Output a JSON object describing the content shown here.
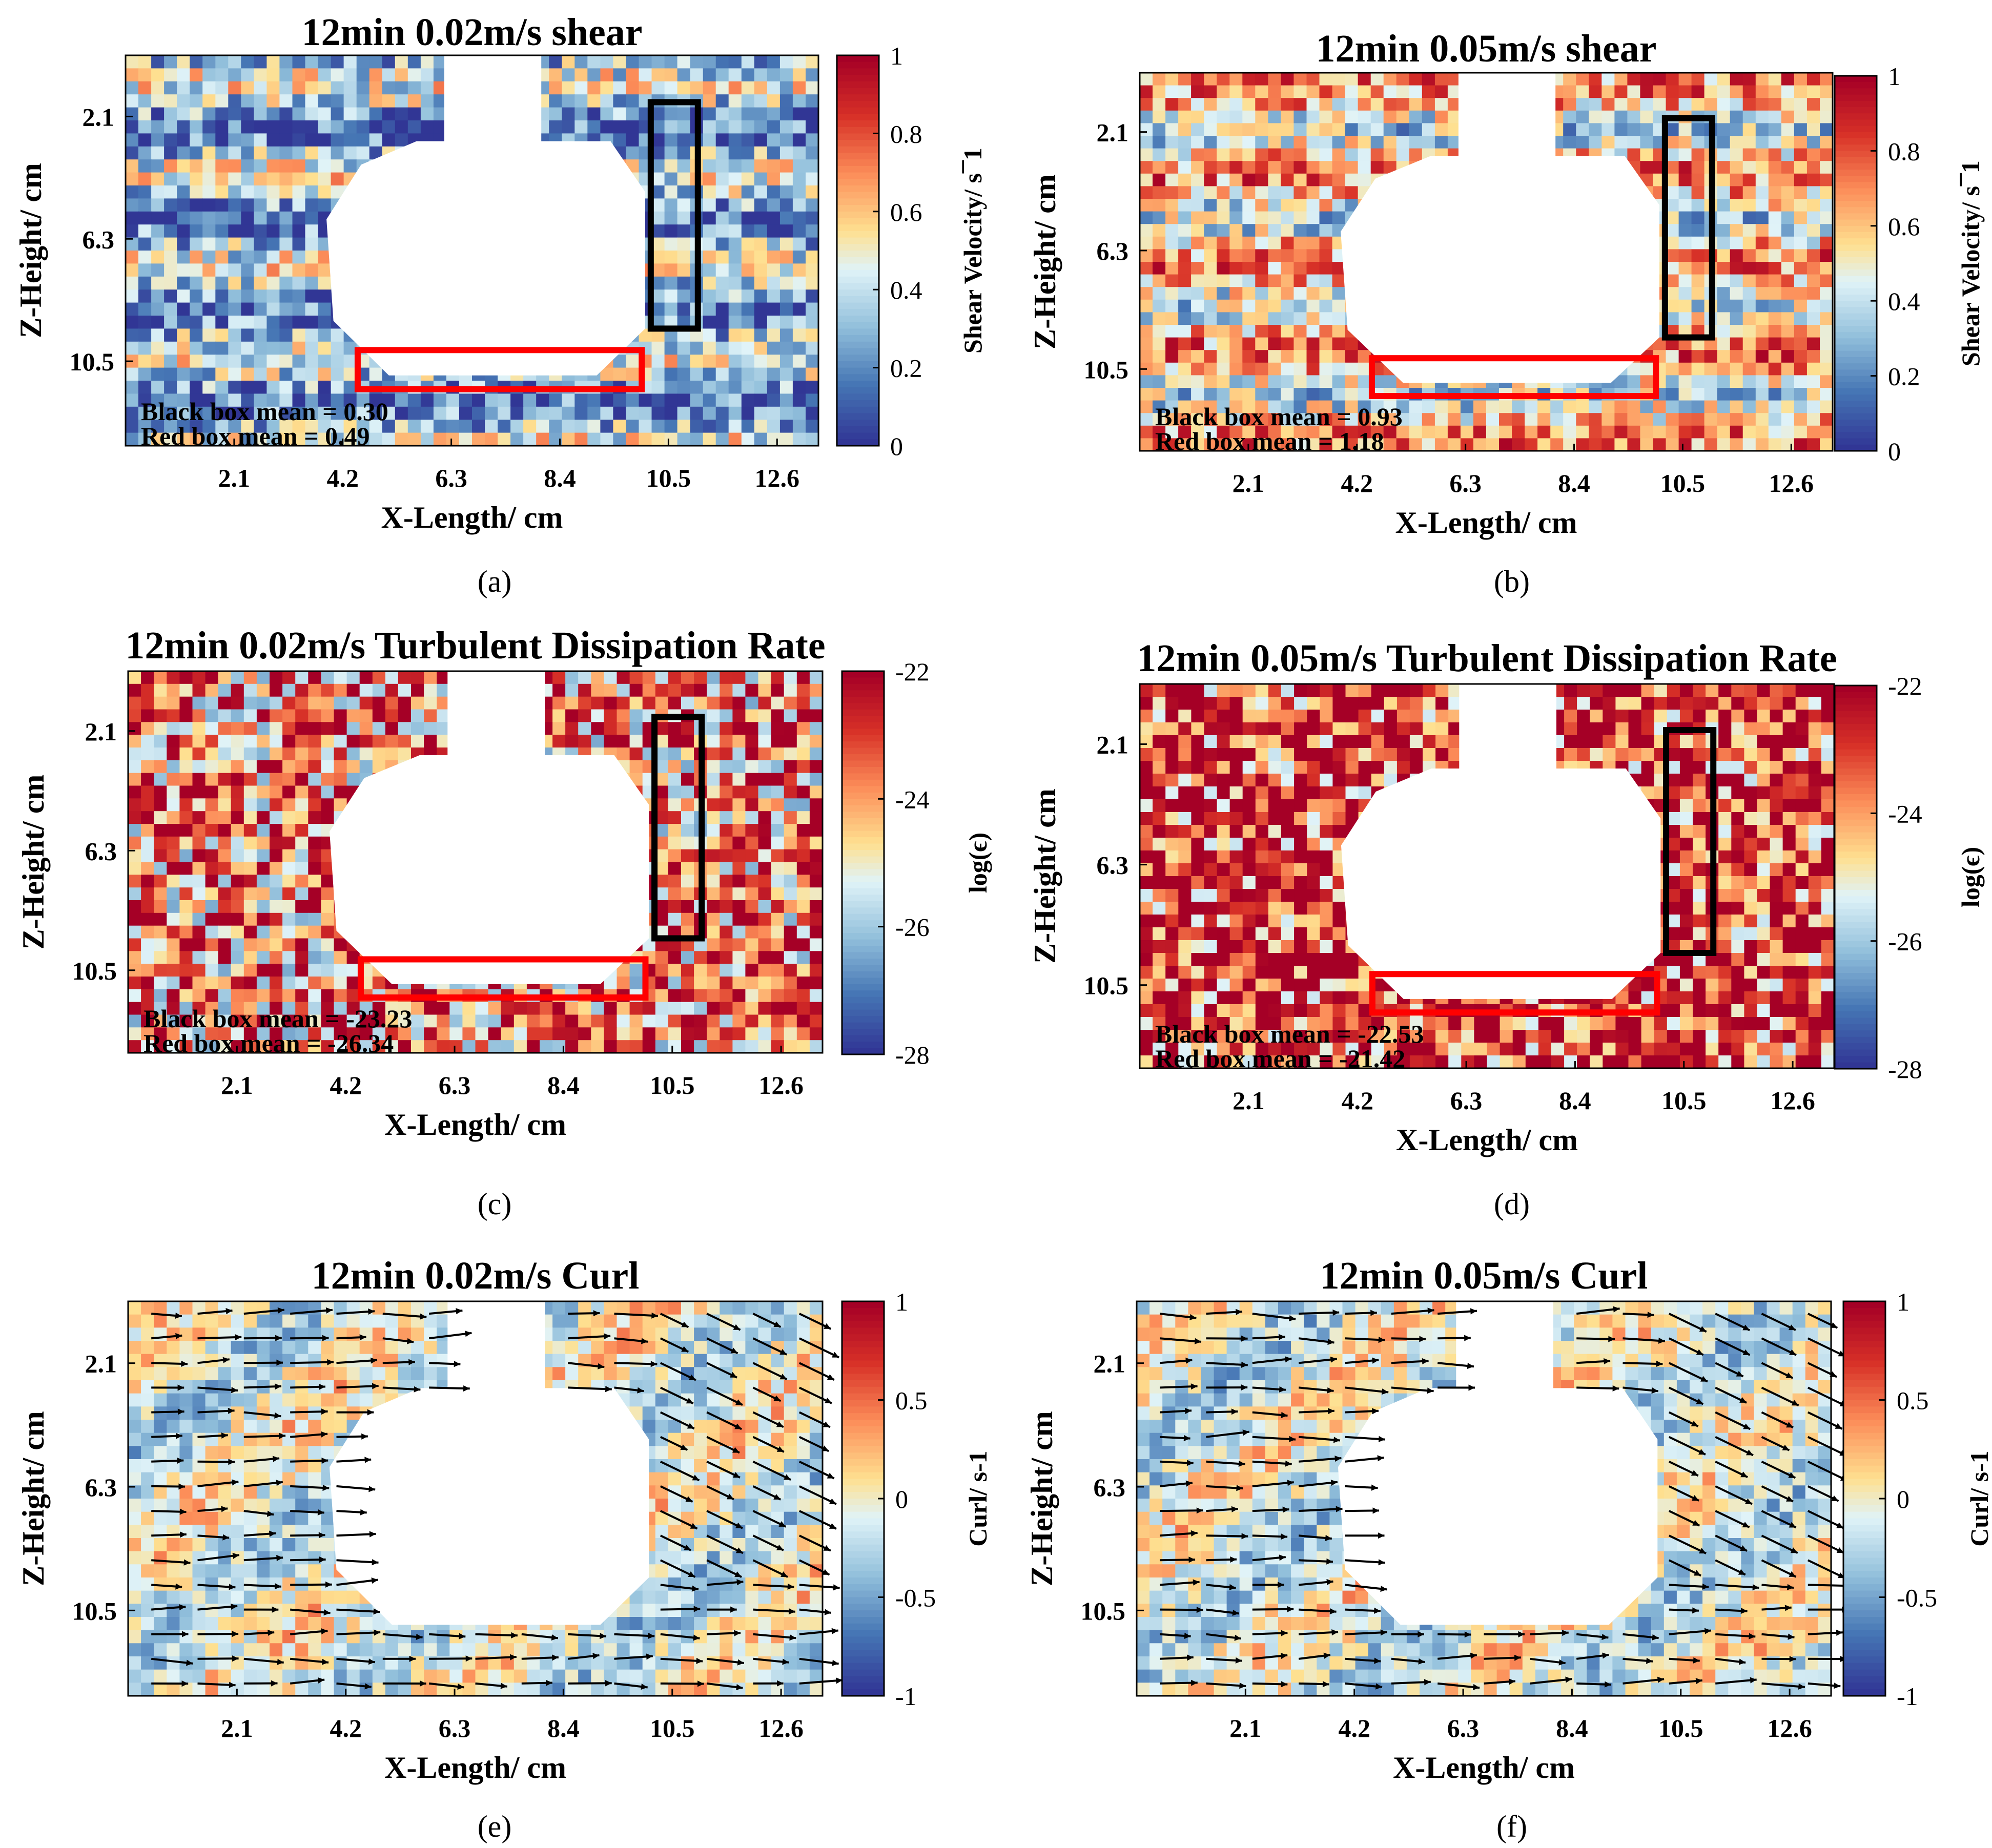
{
  "figure": {
    "panel_labels": [
      "(a)",
      "(b)",
      "(c)",
      "(d)",
      "(e)",
      "(f)"
    ]
  },
  "chart_data": [
    {
      "id": "a",
      "type": "heatmap",
      "field": "shear",
      "title": "12min 0.02m/s shear",
      "xlabel": "X-Length/ cm",
      "ylabel": "Z-Height/ cm",
      "xticks": [
        "2.1",
        "4.2",
        "6.3",
        "8.4",
        "10.5",
        "12.6"
      ],
      "yticks": [
        "2.1",
        "6.3",
        "10.5"
      ],
      "colorbar": {
        "label": "Shear Velocity/ s¯1",
        "ticks": [
          "1",
          "0.8",
          "0.6",
          "0.4",
          "0.2",
          "0"
        ],
        "range": [
          0,
          1
        ],
        "colormap": "blue-white-red"
      },
      "annotations": [
        "Black box mean = 0.30",
        "Red box mean = 0.49"
      ],
      "black_box_mean": 0.3,
      "red_box_mean": 0.49,
      "intensity": 0.3
    },
    {
      "id": "b",
      "type": "heatmap",
      "field": "shear",
      "title": "12min 0.05m/s shear",
      "xlabel": "X-Length/ cm",
      "ylabel": "Z-Height/ cm",
      "xticks": [
        "2.1",
        "4.2",
        "6.3",
        "8.4",
        "10.5",
        "12.6"
      ],
      "yticks": [
        "2.1",
        "6.3",
        "10.5"
      ],
      "colorbar": {
        "label": "Shear Velocity/ s¯1",
        "ticks": [
          "1",
          "0.8",
          "0.6",
          "0.4",
          "0.2",
          "0"
        ],
        "range": [
          0,
          1
        ],
        "colormap": "blue-white-red"
      },
      "annotations": [
        "Black box mean = 0.93",
        "Red box mean = 1.18"
      ],
      "black_box_mean": 0.93,
      "red_box_mean": 1.18,
      "intensity": 0.55
    },
    {
      "id": "c",
      "type": "heatmap",
      "field": "dissipation",
      "title": "12min 0.02m/s Turbulent Dissipation Rate",
      "xlabel": "X-Length/ cm",
      "ylabel": "Z-Height/ cm",
      "xticks": [
        "2.1",
        "4.2",
        "6.3",
        "8.4",
        "10.5",
        "12.6"
      ],
      "yticks": [
        "2.1",
        "6.3",
        "10.5"
      ],
      "colorbar": {
        "label": "log(ϵ)",
        "ticks": [
          "-22",
          "-24",
          "-26",
          "-28"
        ],
        "range": [
          -28,
          -22
        ],
        "colormap": "blue-white-red"
      },
      "annotations": [
        "Black box mean = -23.23",
        "Red box mean = -26.34"
      ],
      "black_box_mean": -23.23,
      "red_box_mean": -26.34,
      "intensity": 0.7
    },
    {
      "id": "d",
      "type": "heatmap",
      "field": "dissipation",
      "title": "12min 0.05m/s Turbulent Dissipation Rate",
      "xlabel": "X-Length/ cm",
      "ylabel": "Z-Height/ cm",
      "xticks": [
        "2.1",
        "4.2",
        "6.3",
        "8.4",
        "10.5",
        "12.6"
      ],
      "yticks": [
        "2.1",
        "6.3",
        "10.5"
      ],
      "colorbar": {
        "label": "log(ϵ)",
        "ticks": [
          "-22",
          "-24",
          "-26",
          "-28"
        ],
        "range": [
          -28,
          -22
        ],
        "colormap": "blue-white-red"
      },
      "annotations": [
        "Black box mean = -22.53",
        "Red box mean = -21.42"
      ],
      "black_box_mean": -22.53,
      "red_box_mean": -21.42,
      "intensity": 0.85
    },
    {
      "id": "e",
      "type": "heatmap",
      "field": "curl_with_velocity_vectors",
      "title": "12min 0.02m/s Curl",
      "xlabel": "X-Length/ cm",
      "ylabel": "Z-Height/ cm",
      "xticks": [
        "2.1",
        "4.2",
        "6.3",
        "8.4",
        "10.5",
        "12.6"
      ],
      "yticks": [
        "2.1",
        "6.3",
        "10.5"
      ],
      "colorbar": {
        "label": "Curl/ s-1",
        "ticks": [
          "1",
          "0.5",
          "0",
          "-0.5",
          "-1"
        ],
        "range": [
          -1,
          1
        ],
        "colormap": "blue-white-red"
      },
      "annotations": [],
      "intensity": 0.5
    },
    {
      "id": "f",
      "type": "heatmap",
      "field": "curl_with_velocity_vectors",
      "title": "12min 0.05m/s Curl",
      "xlabel": "X-Length/ cm",
      "ylabel": "Z-Height/ cm",
      "xticks": [
        "2.1",
        "4.2",
        "6.3",
        "8.4",
        "10.5",
        "12.6"
      ],
      "yticks": [
        "2.1",
        "6.3",
        "10.5"
      ],
      "colorbar": {
        "label": "Curl/ s-1",
        "ticks": [
          "1",
          "0.5",
          "0",
          "-0.5",
          "-1"
        ],
        "range": [
          -1,
          1
        ],
        "colormap": "blue-white-red"
      },
      "annotations": [],
      "intensity": 0.4
    }
  ]
}
